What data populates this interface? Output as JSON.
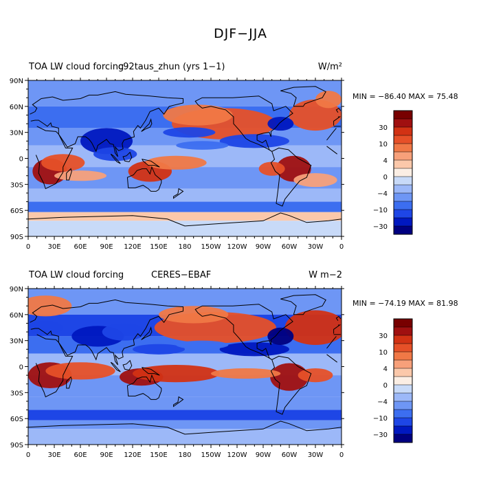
{
  "title": "DJF−JJA",
  "colors": {
    "palette": [
      "#000080",
      "#0018c0",
      "#1e46e6",
      "#3c6ef0",
      "#6e96f5",
      "#9cb8f8",
      "#c8daf8",
      "#fbeee4",
      "#fbc8aa",
      "#f7a07a",
      "#f07846",
      "#e65028",
      "#d23214",
      "#a01010",
      "#780000"
    ],
    "land_outline": "#000000"
  },
  "colorbar_labels": [
    "30",
    "10",
    "4",
    "0",
    "−4",
    "−10",
    "−30"
  ],
  "chart_data": [
    {
      "type": "heatmap",
      "title_left": "TOA LW cloud forcing",
      "title_center": "c92taus_zhun (yrs 1−1)",
      "units": "W/m²",
      "min": -86.4,
      "max": 75.48,
      "min_label": "MIN = −86.40  MAX =  75.48",
      "xticks": [
        "0",
        "30E",
        "60E",
        "90E",
        "120E",
        "150E",
        "180",
        "150W",
        "120W",
        "90W",
        "60W",
        "30W",
        "0"
      ],
      "yticks": [
        "90N",
        "60N",
        "30N",
        "0",
        "30S",
        "60S",
        "90S"
      ],
      "ylim": [
        -90,
        90
      ],
      "xlim": [
        0,
        360
      ]
    },
    {
      "type": "heatmap",
      "title_left": "TOA LW cloud forcing",
      "title_center": "CERES−EBAF",
      "units": "W m−2",
      "min": -74.19,
      "max": 81.98,
      "min_label": "MIN = −74.19  MAX =  81.98",
      "xticks": [
        "0",
        "30E",
        "60E",
        "90E",
        "120E",
        "150E",
        "180",
        "150W",
        "120W",
        "90W",
        "60W",
        "30W",
        "0"
      ],
      "yticks": [
        "90N",
        "60N",
        "30N",
        "0",
        "30S",
        "60S",
        "90S"
      ],
      "ylim": [
        -90,
        90
      ],
      "xlim": [
        0,
        360
      ]
    }
  ]
}
